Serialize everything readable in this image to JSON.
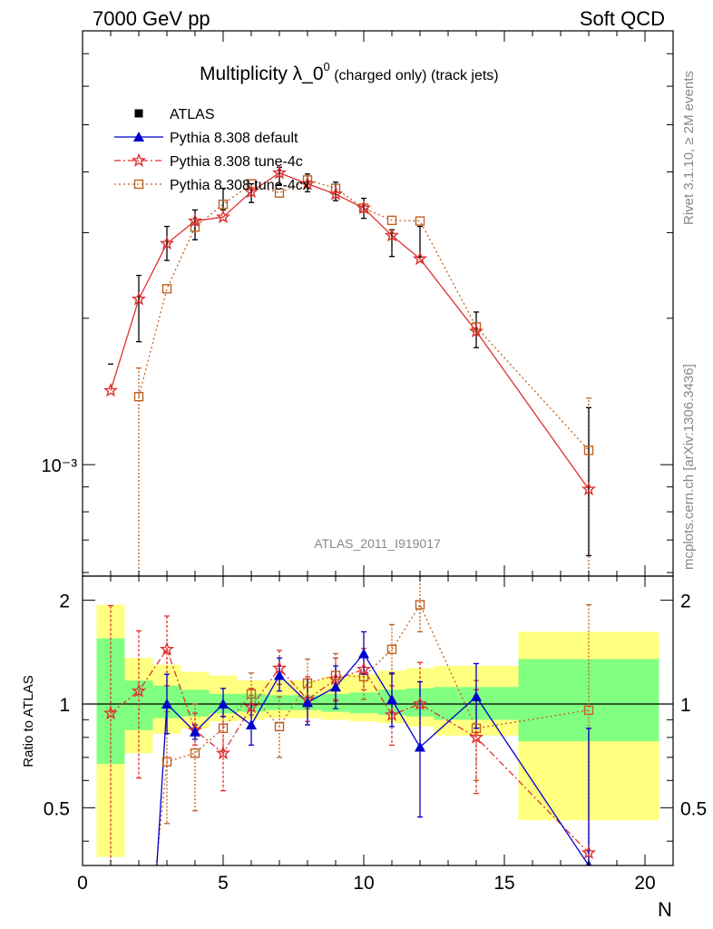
{
  "header": {
    "left": "7000 GeV pp",
    "right": "Soft QCD"
  },
  "side_labels": {
    "rivet": "Rivet 3.1.10, ≥ 2M events",
    "mcplots": "mcplots.cern.ch [arXiv:1306.3436]"
  },
  "watermark": "ATLAS_2011_I919017",
  "chart_data": {
    "type": "scatter",
    "title": "Multiplicity λ_0⁰ (charged only) (track jets)",
    "title_main": "Multiplicity λ_0",
    "title_sup": "0",
    "title_tail": " (charged only) (track jets)",
    "xlabel": "N",
    "ylabel": "",
    "ratio_ylabel": "Ratio to ATLAS",
    "xlim": [
      0,
      21
    ],
    "ylim_log": [
      0.00059,
      0.0078
    ],
    "ratio_ylim": [
      0.34,
      2.35
    ],
    "y_scale": "log",
    "x_ticks": [
      0,
      5,
      10,
      15,
      20
    ],
    "y_tick_label": "10⁻³",
    "ratio_ticks": [
      "0.5",
      "1",
      "2"
    ],
    "legend_position": "top-left",
    "legend": [
      {
        "key": "atlas",
        "label": "ATLAS"
      },
      {
        "key": "default",
        "label": "Pythia 8.308 default"
      },
      {
        "key": "tune4c",
        "label": "Pythia 8.308 tune-4c"
      },
      {
        "key": "tune4cx",
        "label": "Pythia 8.308 tune-4cx"
      }
    ],
    "atlas": [
      {
        "x": 1,
        "y": 0.00161,
        "err": 0.0
      },
      {
        "x": 2,
        "y": 0.00212,
        "err": 0.00033
      },
      {
        "x": 3,
        "y": 0.00286,
        "err": 0.00023
      },
      {
        "x": 4,
        "y": 0.00312,
        "err": 0.00022
      },
      {
        "x": 5,
        "y": 0.00352,
        "err": 0.00018
      },
      {
        "x": 6,
        "y": 0.00362,
        "err": 0.00016
      },
      {
        "x": 7,
        "y": 0.00393,
        "err": 0.00016
      },
      {
        "x": 8,
        "y": 0.0038,
        "err": 0.00016
      },
      {
        "x": 9,
        "y": 0.00365,
        "err": 0.00016
      },
      {
        "x": 10,
        "y": 0.00337,
        "err": 0.00016
      },
      {
        "x": 11,
        "y": 0.00286,
        "err": 0.00018
      },
      {
        "x": 12,
        "y": 0.00288,
        "err": 0.00021
      },
      {
        "x": 14,
        "y": 0.0019,
        "err": 0.00016
      },
      {
        "x": 18,
        "y": 0.00098,
        "err": 0.00033
      }
    ],
    "tune4c": [
      {
        "x": 1,
        "y": 0.00142
      },
      {
        "x": 2,
        "y": 0.00219
      },
      {
        "x": 3,
        "y": 0.00285
      },
      {
        "x": 4,
        "y": 0.00317
      },
      {
        "x": 5,
        "y": 0.00323
      },
      {
        "x": 6,
        "y": 0.00364
      },
      {
        "x": 7,
        "y": 0.00398
      },
      {
        "x": 8,
        "y": 0.00378
      },
      {
        "x": 9,
        "y": 0.0036
      },
      {
        "x": 10,
        "y": 0.00337
      },
      {
        "x": 11,
        "y": 0.00296
      },
      {
        "x": 12,
        "y": 0.00265
      },
      {
        "x": 14,
        "y": 0.00188
      },
      {
        "x": 18,
        "y": 0.00089
      }
    ],
    "tune4cx": [
      {
        "x": 2,
        "y": 0.00138,
        "lo": 0.00059,
        "hi": 0.00158
      },
      {
        "x": 3,
        "y": 0.0023
      },
      {
        "x": 4,
        "y": 0.00308
      },
      {
        "x": 5,
        "y": 0.00343
      },
      {
        "x": 6,
        "y": 0.00378
      },
      {
        "x": 7,
        "y": 0.00362
      },
      {
        "x": 8,
        "y": 0.00385
      },
      {
        "x": 9,
        "y": 0.0037
      },
      {
        "x": 10,
        "y": 0.00337
      },
      {
        "x": 11,
        "y": 0.00318
      },
      {
        "x": 12,
        "y": 0.00317
      },
      {
        "x": 14,
        "y": 0.00192
      },
      {
        "x": 18,
        "y": 0.00107,
        "lo": 0.00059,
        "hi": 0.00137
      }
    ],
    "ratio_bands": [
      {
        "x0": 0.5,
        "x1": 1.5,
        "y_lo": 0.36,
        "y_hi": 1.94,
        "g_lo": 0.67,
        "g_hi": 1.55
      },
      {
        "x0": 1.5,
        "x1": 2.5,
        "y_lo": 0.72,
        "y_hi": 1.36,
        "g_lo": 0.84,
        "g_hi": 1.17
      },
      {
        "x0": 2.5,
        "x1": 3.5,
        "y_lo": 0.82,
        "y_hi": 1.3,
        "g_lo": 0.91,
        "g_hi": 1.13
      },
      {
        "x0": 3.5,
        "x1": 4.5,
        "y_lo": 0.85,
        "y_hi": 1.24,
        "g_lo": 0.92,
        "g_hi": 1.1
      },
      {
        "x0": 4.5,
        "x1": 5.5,
        "y_lo": 0.89,
        "y_hi": 1.21,
        "g_lo": 0.94,
        "g_hi": 1.07
      },
      {
        "x0": 5.5,
        "x1": 6.5,
        "y_lo": 0.9,
        "y_hi": 1.17,
        "g_lo": 0.95,
        "g_hi": 1.07
      },
      {
        "x0": 6.5,
        "x1": 7.5,
        "y_lo": 0.91,
        "y_hi": 1.17,
        "g_lo": 0.96,
        "g_hi": 1.06
      },
      {
        "x0": 7.5,
        "x1": 8.5,
        "y_lo": 0.91,
        "y_hi": 1.17,
        "g_lo": 0.96,
        "g_hi": 1.06
      },
      {
        "x0": 8.5,
        "x1": 9.5,
        "y_lo": 0.9,
        "y_hi": 1.2,
        "g_lo": 0.95,
        "g_hi": 1.07
      },
      {
        "x0": 9.5,
        "x1": 10.5,
        "y_lo": 0.89,
        "y_hi": 1.22,
        "g_lo": 0.94,
        "g_hi": 1.08
      },
      {
        "x0": 10.5,
        "x1": 11.5,
        "y_lo": 0.88,
        "y_hi": 1.25,
        "g_lo": 0.93,
        "g_hi": 1.1
      },
      {
        "x0": 11.5,
        "x1": 12.5,
        "y_lo": 0.86,
        "y_hi": 1.27,
        "g_lo": 0.92,
        "g_hi": 1.11
      },
      {
        "x0": 12.5,
        "x1": 15.5,
        "y_lo": 0.81,
        "y_hi": 1.29,
        "g_lo": 0.9,
        "g_hi": 1.12
      },
      {
        "x0": 15.5,
        "x1": 20.5,
        "y_lo": 0.46,
        "y_hi": 1.62,
        "g_lo": 0.78,
        "g_hi": 1.35
      }
    ],
    "ratio_default": [
      {
        "x": 3,
        "y": 1.0,
        "lo": 0.82,
        "hi": 1.22
      },
      {
        "x": 4,
        "y": 0.83,
        "lo": 0.79,
        "hi": 0.87
      },
      {
        "x": 5,
        "y": 1.0,
        "lo": 0.92,
        "hi": 1.11
      },
      {
        "x": 6,
        "y": 0.87,
        "lo": 0.76,
        "hi": 1.0
      },
      {
        "x": 7,
        "y": 1.21,
        "lo": 1.09,
        "hi": 1.36
      },
      {
        "x": 8,
        "y": 1.01,
        "lo": 0.87,
        "hi": 1.18
      },
      {
        "x": 9,
        "y": 1.12,
        "lo": 0.97,
        "hi": 1.29
      },
      {
        "x": 10,
        "y": 1.4,
        "lo": 1.22,
        "hi": 1.62
      },
      {
        "x": 11,
        "y": 1.03,
        "lo": 0.86,
        "hi": 1.23
      },
      {
        "x": 12,
        "y": 0.75,
        "lo": 0.47,
        "hi": 1.16
      },
      {
        "x": 14,
        "y": 1.05,
        "lo": 0.85,
        "hi": 1.31
      },
      {
        "x": 18,
        "y": 0.34,
        "lo": 0.3,
        "hi": 0.85
      }
    ],
    "ratio_default_entry": {
      "from_x": 2.6,
      "from_y": 0.3
    },
    "ratio_tune4c": [
      {
        "x": 1,
        "y": 0.94,
        "lo": 0.3,
        "hi": 1.93
      },
      {
        "x": 2,
        "y": 1.09,
        "lo": 0.61,
        "hi": 1.63
      },
      {
        "x": 3,
        "y": 1.44,
        "lo": 1.13,
        "hi": 1.8
      },
      {
        "x": 4,
        "y": 0.84,
        "lo": 0.76,
        "hi": 0.94
      },
      {
        "x": 5,
        "y": 0.72,
        "lo": 0.56,
        "hi": 0.92
      },
      {
        "x": 6,
        "y": 0.98,
        "lo": 0.85,
        "hi": 1.11
      },
      {
        "x": 7,
        "y": 1.27,
        "lo": 1.14,
        "hi": 1.43
      },
      {
        "x": 8,
        "y": 1.03,
        "lo": 0.89,
        "hi": 1.2
      },
      {
        "x": 9,
        "y": 1.18,
        "lo": 1.02,
        "hi": 1.36
      },
      {
        "x": 10,
        "y": 1.26,
        "lo": 1.1,
        "hi": 1.45
      },
      {
        "x": 11,
        "y": 0.93,
        "lo": 0.76,
        "hi": 1.13
      },
      {
        "x": 12,
        "y": 1.0,
        "lo": 0.75,
        "hi": 1.32
      },
      {
        "x": 14,
        "y": 0.8,
        "lo": 0.55,
        "hi": 1.1
      },
      {
        "x": 18,
        "y": 0.37,
        "lo": 0.3,
        "hi": 0.85
      }
    ],
    "ratio_tune4cx": [
      {
        "x": 3,
        "y": 0.68,
        "lo": 0.45,
        "hi": 0.95
      },
      {
        "x": 4,
        "y": 0.72,
        "lo": 0.49,
        "hi": 1.0
      },
      {
        "x": 5,
        "y": 0.85,
        "lo": 0.73,
        "hi": 0.99
      },
      {
        "x": 6,
        "y": 1.07,
        "lo": 0.93,
        "hi": 1.23
      },
      {
        "x": 7,
        "y": 0.86,
        "lo": 0.7,
        "hi": 1.05
      },
      {
        "x": 8,
        "y": 1.15,
        "lo": 0.97,
        "hi": 1.35
      },
      {
        "x": 9,
        "y": 1.21,
        "lo": 1.03,
        "hi": 1.4
      },
      {
        "x": 10,
        "y": 1.2,
        "lo": 1.03,
        "hi": 1.4
      },
      {
        "x": 11,
        "y": 1.44,
        "lo": 1.22,
        "hi": 1.7
      },
      {
        "x": 12,
        "y": 1.94,
        "lo": 1.62,
        "hi": 2.35
      },
      {
        "x": 14,
        "y": 0.85,
        "lo": 0.6,
        "hi": 1.17
      },
      {
        "x": 18,
        "y": 0.96,
        "lo": 0.3,
        "hi": 1.94
      }
    ],
    "ratio_tune4cx_entry": {
      "from_x": 2.55,
      "from_y": 0.3
    },
    "colors": {
      "atlas": "#000000",
      "default": "#0000cc",
      "tune4c": "#e03030",
      "tune4cx": "#c06020",
      "band_yellow": "#ffff80",
      "band_green": "#80ff80"
    }
  }
}
